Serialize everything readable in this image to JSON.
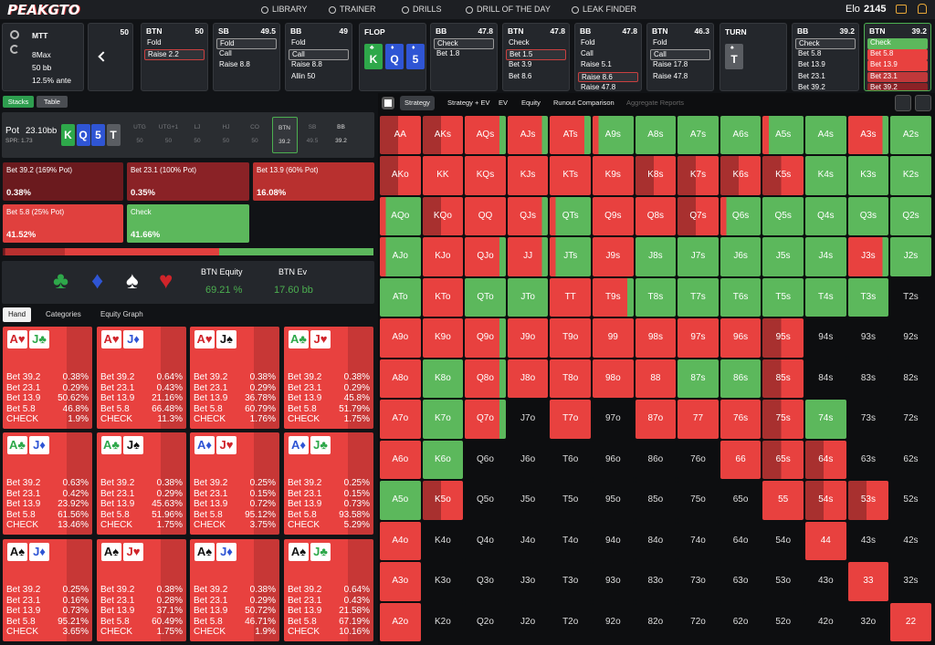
{
  "nav": {
    "logo": "PEAKGTO",
    "items": [
      "LIBRARY",
      "TRAINER",
      "DRILLS",
      "DRILL OF THE DAY",
      "LEAK FINDER"
    ],
    "elo_label": "Elo",
    "elo": "2145"
  },
  "settings": [
    "MTT",
    "8Max",
    "50 bb",
    "12.5% ante"
  ],
  "start_stack": "50",
  "strip": [
    {
      "position": "BTN",
      "stack": "50",
      "options": [
        "Fold",
        "Raise 2.2"
      ],
      "selected": 1,
      "selected_color": "#c94040"
    },
    {
      "position": "SB",
      "stack": "49.5",
      "options": [
        "Fold",
        "Call",
        "Raise 8.8"
      ],
      "selected": 0,
      "selected_color": "#9a9a9a"
    },
    {
      "position": "BB",
      "stack": "49",
      "options": [
        "Fold",
        "Call",
        "Raise 8.8",
        "Allin 50"
      ],
      "selected": 1,
      "selected_color": "#9a9a9a"
    },
    {
      "street": "FLOP",
      "cards": [
        {
          "rank": "K",
          "suit": "♣",
          "color": "#2ea84a"
        },
        {
          "rank": "Q",
          "suit": "♦",
          "color": "#2f55d4"
        },
        {
          "rank": "5",
          "suit": "♦",
          "color": "#2f55d4"
        }
      ]
    },
    {
      "position": "BB",
      "stack": "47.8",
      "options": [
        "Check",
        "Bet 1.8"
      ],
      "selected": 0,
      "selected_color": "#9a9a9a"
    },
    {
      "position": "BTN",
      "stack": "47.8",
      "options": [
        "Check",
        "Bet 1.5",
        "Bet 3.9",
        "Bet 8.6"
      ],
      "selected": 1,
      "selected_color": "#c94040"
    },
    {
      "position": "BB",
      "stack": "47.8",
      "options": [
        "Fold",
        "Call",
        "Raise 5.1",
        "Raise 8.6",
        "Raise 47.8"
      ],
      "selected": 3,
      "selected_color": "#c94040"
    },
    {
      "position": "BTN",
      "stack": "46.3",
      "options": [
        "Fold",
        "Call",
        "Raise 17.8",
        "Raise 47.8"
      ],
      "selected": 1,
      "selected_color": "#9a9a9a"
    },
    {
      "street": "TURN",
      "cards": [
        {
          "rank": "T",
          "suit": "♠",
          "color": "#5a5d62"
        }
      ]
    },
    {
      "position": "BB",
      "stack": "39.2",
      "options": [
        "Check",
        "Bet 5.8",
        "Bet 13.9",
        "Bet 23.1",
        "Bet 39.2"
      ],
      "selected": 0,
      "selected_color": "#9a9a9a"
    },
    {
      "position": "BTN",
      "stack": "39.2",
      "options": [
        "Check",
        "Bet 5.8",
        "Bet 13.9",
        "Bet 23.1",
        "Bet 39.2"
      ],
      "option_colors": [
        "#5cb85c",
        "#e8413f",
        "#e8413f",
        "#c0383a",
        "#8a2226"
      ],
      "border": "#4caf50"
    }
  ],
  "left_tabs": {
    "items": [
      "Stacks",
      "Table"
    ],
    "active": 0
  },
  "pot": {
    "label": "Pot",
    "value": "23.10bb",
    "spr": "SPR: 1.73",
    "board": [
      {
        "rank": "K",
        "color": "#2ea84a"
      },
      {
        "rank": "Q",
        "color": "#2f55d4"
      },
      {
        "rank": "5",
        "color": "#2f55d4"
      },
      {
        "rank": "T",
        "color": "#5a5d62"
      }
    ],
    "positions": [
      {
        "name": "UTG",
        "stack": "50",
        "status": "folded"
      },
      {
        "name": "UTG+1",
        "stack": "50",
        "status": "folded"
      },
      {
        "name": "LJ",
        "stack": "50",
        "status": "folded"
      },
      {
        "name": "HJ",
        "stack": "50",
        "status": "folded"
      },
      {
        "name": "CO",
        "stack": "50",
        "status": "folded"
      },
      {
        "name": "BTN",
        "stack": "39.2",
        "status": "current"
      },
      {
        "name": "SB",
        "stack": "49.5",
        "status": "folded"
      },
      {
        "name": "BB",
        "stack": "39.2",
        "status": "active"
      }
    ]
  },
  "summary": {
    "labels": [
      "Bet 39.2 (169% Pot)",
      "Bet 23.1 (100% Pot)",
      "Bet 13.9 (60% Pot)",
      "Bet 5.8 (25% Pot)",
      "Check"
    ],
    "values": [
      0.38,
      0.35,
      16.08,
      41.52,
      41.66
    ],
    "value_labels": [
      "0.38%",
      "0.35%",
      "16.08%",
      "41.52%",
      "41.66%"
    ],
    "colors": [
      "#6b1a1e",
      "#8a2226",
      "#b8302f",
      "#e0403e",
      "#5cb85c"
    ]
  },
  "equity": {
    "suits": [
      "♣",
      "♦",
      "♠",
      "♥"
    ],
    "suit_colors": [
      "#2ea84a",
      "#2f55d4",
      "#ffffff",
      "#d0242a"
    ],
    "equity_label": "BTN Equity",
    "equity_value": "69.21 %",
    "ev_label": "BTN Ev",
    "ev_value": "17.60 bb"
  },
  "hand_tabs": {
    "items": [
      "Hand",
      "Categories",
      "Equity Graph"
    ],
    "active": 0
  },
  "hands": {
    "row_labels": [
      "Bet 39.2",
      "Bet 23.1",
      "Bet 13.9",
      "Bet 5.8",
      "CHECK"
    ],
    "items": [
      {
        "cards": [
          "A♥",
          "J♣"
        ],
        "values": [
          "0.38%",
          "0.29%",
          "50.62%",
          "46.8%",
          "1.9%"
        ]
      },
      {
        "cards": [
          "A♥",
          "J♦"
        ],
        "values": [
          "0.64%",
          "0.43%",
          "21.16%",
          "66.48%",
          "11.3%"
        ]
      },
      {
        "cards": [
          "A♥",
          "J♠"
        ],
        "values": [
          "0.38%",
          "0.29%",
          "36.78%",
          "60.79%",
          "1.76%"
        ]
      },
      {
        "cards": [
          "A♣",
          "J♥"
        ],
        "values": [
          "0.38%",
          "0.29%",
          "45.8%",
          "51.79%",
          "1.75%"
        ]
      },
      {
        "cards": [
          "A♣",
          "J♦"
        ],
        "values": [
          "0.63%",
          "0.42%",
          "23.92%",
          "61.56%",
          "13.46%"
        ]
      },
      {
        "cards": [
          "A♣",
          "J♠"
        ],
        "values": [
          "0.38%",
          "0.29%",
          "45.63%",
          "51.96%",
          "1.75%"
        ]
      },
      {
        "cards": [
          "A♦",
          "J♥"
        ],
        "values": [
          "0.25%",
          "0.15%",
          "0.72%",
          "95.12%",
          "3.75%"
        ]
      },
      {
        "cards": [
          "A♦",
          "J♣"
        ],
        "values": [
          "0.25%",
          "0.15%",
          "0.73%",
          "93.58%",
          "5.29%"
        ]
      },
      {
        "cards": [
          "A♠",
          "J♦"
        ],
        "values": [
          "0.25%",
          "0.16%",
          "0.73%",
          "95.21%",
          "3.65%"
        ]
      },
      {
        "cards": [
          "A♠",
          "J♥"
        ],
        "values": [
          "0.38%",
          "0.28%",
          "37.1%",
          "60.49%",
          "1.75%"
        ]
      },
      {
        "cards": [
          "A♠",
          "J♦"
        ],
        "values": [
          "0.38%",
          "0.29%",
          "50.72%",
          "46.71%",
          "1.9%"
        ]
      },
      {
        "cards": [
          "A♠",
          "J♣"
        ],
        "values": [
          "0.64%",
          "0.43%",
          "21.58%",
          "67.19%",
          "10.16%"
        ]
      }
    ]
  },
  "right_tabs": {
    "items": [
      "Strategy",
      "Strategy + EV",
      "EV",
      "Equity",
      "Runout Comparison",
      "Aggregate Reports"
    ],
    "active": 0
  },
  "grid": {
    "palette": {
      "red": "#e8413f",
      "dark": "#a8302f",
      "green": "#5cb85c",
      "none": "#0d0e10"
    },
    "codes": [
      "ddmmmGgggGgmg",
      "drrrrrddddggg",
      "GdrmGrrdGgggg",
      "GrmmGrgggggmg",
      "grggrmggggggn",
      "rrmrrrrrrdnnn",
      "rgmrrrrggdnnn",
      "rgmnrnrrrdgnn",
      "rgnnnnnnrddnn",
      "gdnnnnnnnrddn",
      "rnnnnnnnnnrnn",
      "rnnnnnnnnnnrn",
      "rnnnnnnnnnnnr"
    ],
    "rows": [
      [
        "AA",
        "AKs",
        "AQs",
        "AJs",
        "ATs",
        "A9s",
        "A8s",
        "A7s",
        "A6s",
        "A5s",
        "A4s",
        "A3s",
        "A2s"
      ],
      [
        "AKo",
        "KK",
        "KQs",
        "KJs",
        "KTs",
        "K9s",
        "K8s",
        "K7s",
        "K6s",
        "K5s",
        "K4s",
        "K3s",
        "K2s"
      ],
      [
        "AQo",
        "KQo",
        "QQ",
        "QJs",
        "QTs",
        "Q9s",
        "Q8s",
        "Q7s",
        "Q6s",
        "Q5s",
        "Q4s",
        "Q3s",
        "Q2s"
      ],
      [
        "AJo",
        "KJo",
        "QJo",
        "JJ",
        "JTs",
        "J9s",
        "J8s",
        "J7s",
        "J6s",
        "J5s",
        "J4s",
        "J3s",
        "J2s"
      ],
      [
        "ATo",
        "KTo",
        "QTo",
        "JTo",
        "TT",
        "T9s",
        "T8s",
        "T7s",
        "T6s",
        "T5s",
        "T4s",
        "T3s",
        "T2s"
      ],
      [
        "A9o",
        "K9o",
        "Q9o",
        "J9o",
        "T9o",
        "99",
        "98s",
        "97s",
        "96s",
        "95s",
        "94s",
        "93s",
        "92s"
      ],
      [
        "A8o",
        "K8o",
        "Q8o",
        "J8o",
        "T8o",
        "98o",
        "88",
        "87s",
        "86s",
        "85s",
        "84s",
        "83s",
        "82s"
      ],
      [
        "A7o",
        "K7o",
        "Q7o",
        "J7o",
        "T7o",
        "97o",
        "87o",
        "77",
        "76s",
        "75s",
        "74s",
        "73s",
        "72s"
      ],
      [
        "A6o",
        "K6o",
        "Q6o",
        "J6o",
        "T6o",
        "96o",
        "86o",
        "76o",
        "66",
        "65s",
        "64s",
        "63s",
        "62s"
      ],
      [
        "A5o",
        "K5o",
        "Q5o",
        "J5o",
        "T5o",
        "95o",
        "85o",
        "75o",
        "65o",
        "55",
        "54s",
        "53s",
        "52s"
      ],
      [
        "A4o",
        "K4o",
        "Q4o",
        "J4o",
        "T4o",
        "94o",
        "84o",
        "74o",
        "64o",
        "54o",
        "44",
        "43s",
        "42s"
      ],
      [
        "A3o",
        "K3o",
        "Q3o",
        "J3o",
        "T3o",
        "93o",
        "83o",
        "73o",
        "63o",
        "53o",
        "43o",
        "33",
        "32s"
      ],
      [
        "A2o",
        "K2o",
        "Q2o",
        "J2o",
        "T2o",
        "92o",
        "82o",
        "72o",
        "62o",
        "52o",
        "42o",
        "32o",
        "22"
      ]
    ]
  }
}
